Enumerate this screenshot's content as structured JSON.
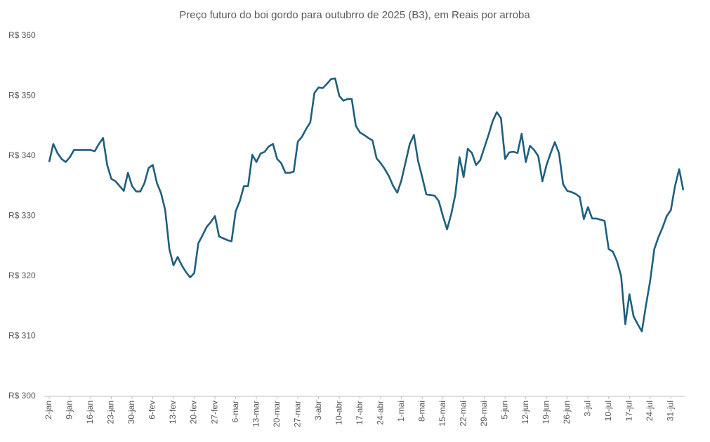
{
  "chart_data": {
    "type": "line",
    "title": "Preço futuro do boi gordo para outubrro de 2025 (B3), em Reais por arroba",
    "categories": [
      "2-jan",
      null,
      null,
      null,
      null,
      "9-jan",
      null,
      null,
      null,
      null,
      "16-jan",
      null,
      null,
      null,
      null,
      "23-jan",
      null,
      null,
      null,
      null,
      "30-jan",
      null,
      null,
      null,
      null,
      "6-fev",
      null,
      null,
      null,
      null,
      "13-fev",
      null,
      null,
      null,
      null,
      "20-fev",
      null,
      null,
      null,
      null,
      "27-fev",
      null,
      null,
      null,
      null,
      "6-mar",
      null,
      null,
      null,
      null,
      "13-mar",
      null,
      null,
      null,
      null,
      "20-mar",
      null,
      null,
      null,
      null,
      "27-mar",
      null,
      null,
      null,
      null,
      "3-abr",
      null,
      null,
      null,
      null,
      "10-abr",
      null,
      null,
      null,
      null,
      "17-abr",
      null,
      null,
      null,
      null,
      "24-abr",
      null,
      null,
      null,
      null,
      "1-mai",
      null,
      null,
      null,
      null,
      "8-mai",
      null,
      null,
      null,
      null,
      "15-mai",
      null,
      null,
      null,
      null,
      "22-mai",
      null,
      null,
      null,
      null,
      "29-mai",
      null,
      null,
      null,
      null,
      "5-jun",
      null,
      null,
      null,
      null,
      "12-jun",
      null,
      null,
      null,
      null,
      "19-jun",
      null,
      null,
      null,
      null,
      "26-jun",
      null,
      null,
      null,
      null,
      "3-jul",
      null,
      null,
      null,
      null,
      "10-jul",
      null,
      null,
      null,
      null,
      "17-jul",
      null,
      null,
      null,
      null,
      "24-jul",
      null,
      null,
      null,
      null,
      "31-jul",
      null,
      null,
      null
    ],
    "series": [
      {
        "name": "Preço futuro",
        "color": "#1f5f7d",
        "values": [
          339,
          342,
          340.5,
          339.5,
          339,
          339.8,
          341,
          341,
          341,
          341,
          341,
          340.8,
          342,
          343,
          338.5,
          336.2,
          335.8,
          335,
          334.2,
          337.2,
          335,
          334.1,
          334.1,
          335.5,
          338,
          338.5,
          335.5,
          333.8,
          331,
          324.5,
          321.8,
          323.2,
          321.8,
          320.7,
          319.8,
          320.5,
          325.5,
          326.8,
          328.2,
          329,
          330,
          326.6,
          326.3,
          326,
          325.8,
          330.8,
          332.5,
          335,
          335,
          340.2,
          339,
          340.4,
          340.7,
          341.6,
          342,
          339.5,
          338.8,
          337.2,
          337.2,
          337.4,
          342.4,
          343.2,
          344.5,
          345.6,
          350.5,
          351.4,
          351.3,
          352,
          352.8,
          352.9,
          350,
          349.2,
          349.5,
          349.5,
          345,
          343.9,
          343.5,
          343,
          342.6,
          339.6,
          338.8,
          337.8,
          336.6,
          335,
          333.9,
          336,
          339,
          342,
          343.5,
          339.2,
          336.5,
          333.6,
          333.5,
          333.4,
          332.5,
          330,
          327.8,
          330.3,
          333.6,
          339.8,
          336.5,
          341.2,
          340.5,
          338.5,
          339.3,
          341.4,
          343.5,
          345.8,
          347.3,
          346.3,
          339.5,
          340.6,
          340.7,
          340.5,
          343.7,
          339,
          341.7,
          341,
          340,
          335.8,
          338.5,
          340.5,
          342.3,
          340.5,
          335.3,
          334.2,
          334,
          333.7,
          333.2,
          329.5,
          331.5,
          329.6,
          329.6,
          329.4,
          329.2,
          324.5,
          324.1,
          322.5,
          320,
          312,
          317,
          313.3,
          312,
          310.8,
          315.2,
          319.2,
          324.5,
          326.5,
          328.1,
          330,
          331,
          335,
          337.8,
          334.3
        ]
      }
    ],
    "ylim": [
      300,
      360
    ],
    "yticks": [
      {
        "value": 300,
        "label": "R$ 300"
      },
      {
        "value": 310,
        "label": "R$ 310"
      },
      {
        "value": 320,
        "label": "R$ 320"
      },
      {
        "value": 330,
        "label": "R$ 330"
      },
      {
        "value": 340,
        "label": "R$ 340"
      },
      {
        "value": 350,
        "label": "R$ 350"
      },
      {
        "value": 360,
        "label": "R$ 360"
      }
    ],
    "grid": false
  }
}
